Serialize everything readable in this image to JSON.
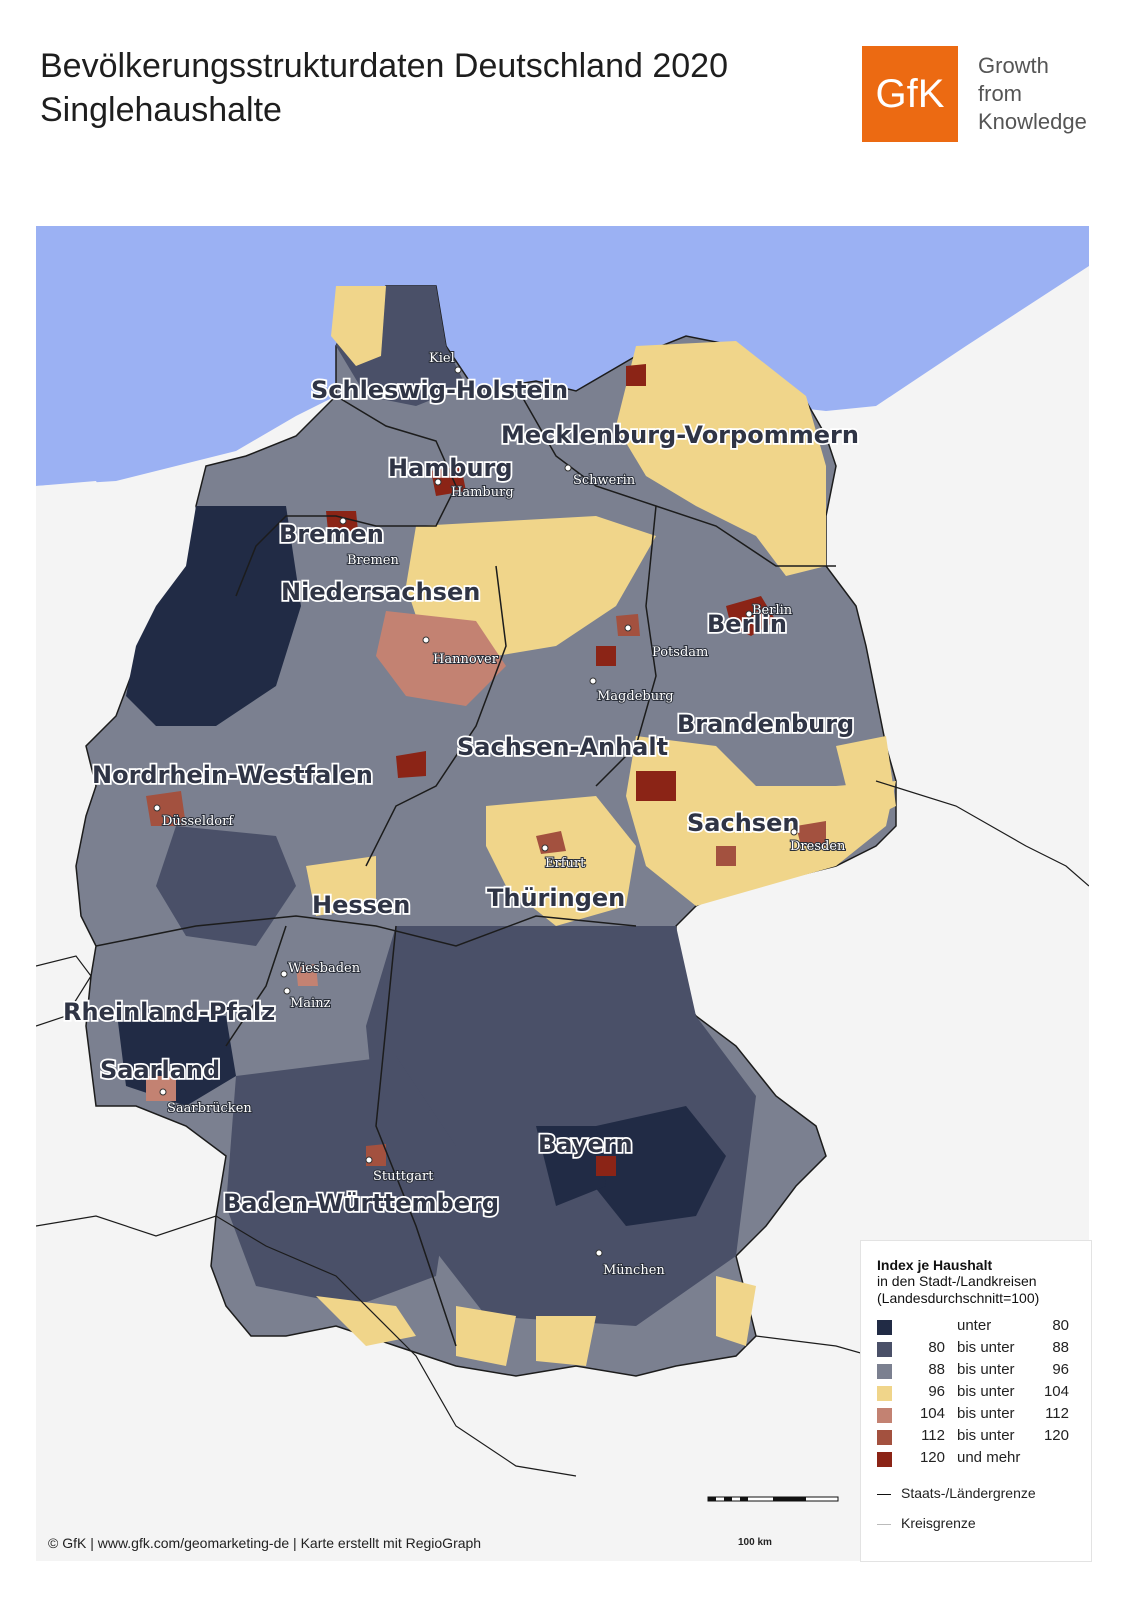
{
  "header": {
    "title_line1": "Bevölkerungsstrukturdaten Deutschland 2020",
    "title_line2": "Singlehaushalte"
  },
  "logo": {
    "mark": "GfK",
    "tagline": [
      "Growth",
      "from",
      "Knowledge"
    ],
    "color": "#ec6a12"
  },
  "map": {
    "colors": {
      "water": "#9bb1f3",
      "land_outside": "#f4f4f4",
      "border": "#1c1c1c"
    },
    "states": [
      {
        "name": "Schleswig-Holstein",
        "dominant_class": "80-88"
      },
      {
        "name": "Mecklenburg-Vorpommern",
        "dominant_class": "96-104"
      },
      {
        "name": "Hamburg",
        "dominant_class": "112-120"
      },
      {
        "name": "Bremen",
        "dominant_class": "112-120"
      },
      {
        "name": "Niedersachsen",
        "dominant_class": "88-96"
      },
      {
        "name": "Berlin",
        "dominant_class": "120+"
      },
      {
        "name": "Brandenburg",
        "dominant_class": "88-96"
      },
      {
        "name": "Sachsen-Anhalt",
        "dominant_class": "96-104"
      },
      {
        "name": "Nordrhein-Westfalen",
        "dominant_class": "88-96"
      },
      {
        "name": "Sachsen",
        "dominant_class": "96-104"
      },
      {
        "name": "Thüringen",
        "dominant_class": "96-104"
      },
      {
        "name": "Hessen",
        "dominant_class": "80-88"
      },
      {
        "name": "Rheinland-Pfalz",
        "dominant_class": "80-88"
      },
      {
        "name": "Saarland",
        "dominant_class": "80-88"
      },
      {
        "name": "Bayern",
        "dominant_class": "80-88"
      },
      {
        "name": "Baden-Württemberg",
        "dominant_class": "80-88"
      }
    ],
    "cities": [
      "Kiel",
      "Hamburg",
      "Schwerin",
      "Bremen",
      "Berlin",
      "Hannover",
      "Potsdam",
      "Magdeburg",
      "Düsseldorf",
      "Dresden",
      "Erfurt",
      "Wiesbaden",
      "Mainz",
      "Saarbrücken",
      "Stuttgart",
      "München"
    ]
  },
  "legend": {
    "title": "Index je Haushalt",
    "subtitle1": "in den Stadt-/Landkreisen",
    "subtitle2": "(Landesdurchschnitt=100)",
    "classes": [
      {
        "low": "",
        "mid": "unter",
        "high": "80",
        "color": "#212b45"
      },
      {
        "low": "80",
        "mid": "bis unter",
        "high": "88",
        "color": "#4a5068"
      },
      {
        "low": "88",
        "mid": "bis unter",
        "high": "96",
        "color": "#7b8090"
      },
      {
        "low": "96",
        "mid": "bis unter",
        "high": "104",
        "color": "#f0d58a"
      },
      {
        "low": "104",
        "mid": "bis unter",
        "high": "112",
        "color": "#c38272"
      },
      {
        "low": "112",
        "mid": "bis unter",
        "high": "120",
        "color": "#a3513f"
      },
      {
        "low": "120",
        "mid": "und mehr",
        "high": "",
        "color": "#8b2416"
      }
    ],
    "lines": [
      {
        "label": "Staats-/Ländergrenze",
        "color": "#111111"
      },
      {
        "label": "Kreisgrenze",
        "color": "#bbbbbb"
      }
    ]
  },
  "footer": {
    "credit": "© GfK | www.gfk.com/geomarketing-de | Karte erstellt mit RegioGraph",
    "scale": "100 km"
  }
}
